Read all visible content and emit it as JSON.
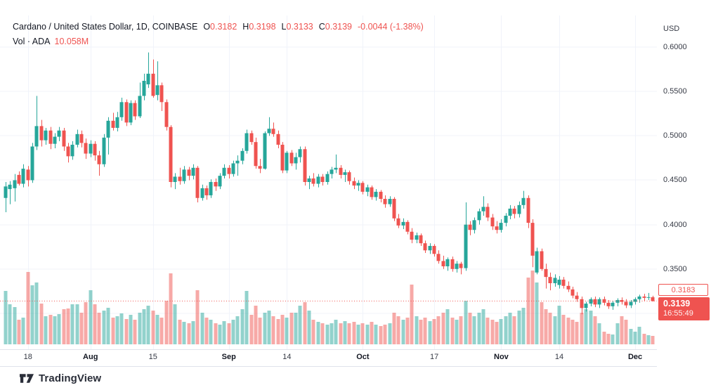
{
  "header": {
    "symbol_title": "Cardano / United States Dollar, 1D, COINBASE",
    "ohlc": [
      {
        "label": "O",
        "value": "0.3182"
      },
      {
        "label": "H",
        "value": "0.3198"
      },
      {
        "label": "L",
        "value": "0.3133"
      },
      {
        "label": "C",
        "value": "0.3139"
      }
    ],
    "change": "-0.0044 (-1.38%)",
    "volume_label": "Vol · ADA",
    "volume_value": "10.058M"
  },
  "price_axis": {
    "currency": "USD",
    "ticks": [
      {
        "label": "0.6000",
        "value": 0.6
      },
      {
        "label": "0.5500",
        "value": 0.55
      },
      {
        "label": "0.5000",
        "value": 0.5
      },
      {
        "label": "0.4500",
        "value": 0.45
      },
      {
        "label": "0.4000",
        "value": 0.4
      },
      {
        "label": "0.3500",
        "value": 0.35
      }
    ],
    "prev_close": {
      "value": "0.3183"
    },
    "last_price": {
      "value": "0.3139",
      "countdown": "16:55:49"
    }
  },
  "time_axis": {
    "ticks": [
      {
        "label": "18",
        "index": 5,
        "major": false
      },
      {
        "label": "Aug",
        "index": 19,
        "major": true
      },
      {
        "label": "15",
        "index": 33,
        "major": false
      },
      {
        "label": "Sep",
        "index": 50,
        "major": true
      },
      {
        "label": "14",
        "index": 63,
        "major": false
      },
      {
        "label": "Oct",
        "index": 80,
        "major": true
      },
      {
        "label": "17",
        "index": 96,
        "major": false
      },
      {
        "label": "Nov",
        "index": 111,
        "major": true
      },
      {
        "label": "14",
        "index": 124,
        "major": false
      },
      {
        "label": "Dec",
        "index": 141,
        "major": true
      }
    ]
  },
  "footer": {
    "brand": "TradingView"
  },
  "colors": {
    "up": "#26a69a",
    "down": "#ef5350",
    "vol_up": "rgba(38,166,154,0.5)",
    "vol_down": "rgba(239,83,80,0.5)",
    "grid": "#f0f3fa",
    "border": "#e0e3eb",
    "text": "#131722",
    "muted": "#363a45",
    "price_line": "#ef5350"
  },
  "chart_data": {
    "type": "candlestick",
    "title": "Cardano / United States Dollar, 1D, COINBASE",
    "ylabel": "USD",
    "ylim": [
      0.265,
      0.608
    ],
    "grid_prices": [
      0.6,
      0.55,
      0.5,
      0.45,
      0.4,
      0.35,
      0.3
    ],
    "price_line": 0.3139,
    "prev_close": 0.3183,
    "last_ohlc": {
      "o": 0.3182,
      "h": 0.3198,
      "l": 0.3133,
      "c": 0.3139
    },
    "volume_note": "volume bar heights are relative units (pane max = 105)",
    "candles": [
      [
        0.43,
        0.448,
        0.414,
        0.443,
        76
      ],
      [
        0.44,
        0.449,
        0.423,
        0.445,
        57
      ],
      [
        0.441,
        0.457,
        0.426,
        0.45,
        53
      ],
      [
        0.456,
        0.46,
        0.444,
        0.446,
        35
      ],
      [
        0.446,
        0.468,
        0.442,
        0.463,
        38
      ],
      [
        0.462,
        0.466,
        0.443,
        0.45,
        103
      ],
      [
        0.45,
        0.492,
        0.447,
        0.488,
        84
      ],
      [
        0.488,
        0.545,
        0.484,
        0.511,
        88
      ],
      [
        0.511,
        0.518,
        0.488,
        0.495,
        58
      ],
      [
        0.495,
        0.509,
        0.49,
        0.506,
        40
      ],
      [
        0.506,
        0.51,
        0.485,
        0.491,
        42
      ],
      [
        0.491,
        0.503,
        0.486,
        0.499,
        40
      ],
      [
        0.499,
        0.51,
        0.494,
        0.506,
        43
      ],
      [
        0.506,
        0.509,
        0.483,
        0.488,
        50
      ],
      [
        0.488,
        0.492,
        0.47,
        0.477,
        51
      ],
      [
        0.477,
        0.494,
        0.473,
        0.49,
        57
      ],
      [
        0.49,
        0.507,
        0.487,
        0.502,
        57
      ],
      [
        0.502,
        0.506,
        0.487,
        0.492,
        45
      ],
      [
        0.492,
        0.497,
        0.474,
        0.48,
        60
      ],
      [
        0.48,
        0.495,
        0.476,
        0.491,
        77
      ],
      [
        0.491,
        0.494,
        0.472,
        0.478,
        57
      ],
      [
        0.478,
        0.483,
        0.455,
        0.468,
        45
      ],
      [
        0.468,
        0.502,
        0.465,
        0.498,
        48
      ],
      [
        0.498,
        0.521,
        0.479,
        0.517,
        52
      ],
      [
        0.517,
        0.526,
        0.506,
        0.509,
        38
      ],
      [
        0.509,
        0.527,
        0.505,
        0.521,
        40
      ],
      [
        0.521,
        0.543,
        0.517,
        0.538,
        44
      ],
      [
        0.538,
        0.541,
        0.511,
        0.515,
        36
      ],
      [
        0.515,
        0.54,
        0.512,
        0.537,
        42
      ],
      [
        0.537,
        0.54,
        0.518,
        0.522,
        35
      ],
      [
        0.522,
        0.56,
        0.52,
        0.545,
        45
      ],
      [
        0.545,
        0.57,
        0.54,
        0.562,
        50
      ],
      [
        0.558,
        0.594,
        0.554,
        0.57,
        55
      ],
      [
        0.57,
        0.586,
        0.543,
        0.545,
        48
      ],
      [
        0.546,
        0.584,
        0.54,
        0.557,
        42
      ],
      [
        0.557,
        0.56,
        0.528,
        0.538,
        38
      ],
      [
        0.538,
        0.541,
        0.506,
        0.51,
        62
      ],
      [
        0.51,
        0.512,
        0.442,
        0.448,
        101
      ],
      [
        0.448,
        0.458,
        0.44,
        0.454,
        57
      ],
      [
        0.454,
        0.464,
        0.445,
        0.449,
        35
      ],
      [
        0.449,
        0.466,
        0.446,
        0.462,
        32
      ],
      [
        0.462,
        0.465,
        0.45,
        0.455,
        30
      ],
      [
        0.455,
        0.468,
        0.451,
        0.464,
        33
      ],
      [
        0.464,
        0.466,
        0.425,
        0.43,
        77
      ],
      [
        0.43,
        0.445,
        0.427,
        0.441,
        45
      ],
      [
        0.441,
        0.444,
        0.428,
        0.433,
        38
      ],
      [
        0.433,
        0.451,
        0.43,
        0.448,
        35
      ],
      [
        0.448,
        0.452,
        0.438,
        0.443,
        30
      ],
      [
        0.443,
        0.458,
        0.44,
        0.455,
        28
      ],
      [
        0.455,
        0.468,
        0.452,
        0.464,
        33
      ],
      [
        0.464,
        0.467,
        0.452,
        0.457,
        30
      ],
      [
        0.457,
        0.472,
        0.454,
        0.469,
        35
      ],
      [
        0.469,
        0.478,
        0.455,
        0.472,
        40
      ],
      [
        0.472,
        0.486,
        0.468,
        0.483,
        50
      ],
      [
        0.483,
        0.507,
        0.48,
        0.503,
        76
      ],
      [
        0.503,
        0.506,
        0.49,
        0.493,
        42
      ],
      [
        0.493,
        0.498,
        0.463,
        0.466,
        55
      ],
      [
        0.466,
        0.474,
        0.458,
        0.463,
        38
      ],
      [
        0.463,
        0.505,
        0.462,
        0.503,
        45
      ],
      [
        0.503,
        0.521,
        0.5,
        0.508,
        48
      ],
      [
        0.508,
        0.515,
        0.499,
        0.502,
        40
      ],
      [
        0.502,
        0.506,
        0.486,
        0.49,
        36
      ],
      [
        0.49,
        0.493,
        0.458,
        0.461,
        42
      ],
      [
        0.461,
        0.483,
        0.458,
        0.481,
        38
      ],
      [
        0.481,
        0.484,
        0.466,
        0.469,
        45
      ],
      [
        0.469,
        0.481,
        0.462,
        0.476,
        45
      ],
      [
        0.476,
        0.488,
        0.47,
        0.485,
        55
      ],
      [
        0.485,
        0.488,
        0.444,
        0.448,
        60
      ],
      [
        0.448,
        0.455,
        0.44,
        0.452,
        48
      ],
      [
        0.452,
        0.458,
        0.443,
        0.446,
        35
      ],
      [
        0.446,
        0.457,
        0.442,
        0.454,
        32
      ],
      [
        0.454,
        0.457,
        0.444,
        0.448,
        30
      ],
      [
        0.448,
        0.46,
        0.445,
        0.457,
        28
      ],
      [
        0.457,
        0.465,
        0.452,
        0.462,
        30
      ],
      [
        0.462,
        0.479,
        0.458,
        0.464,
        35
      ],
      [
        0.464,
        0.467,
        0.452,
        0.456,
        30
      ],
      [
        0.456,
        0.462,
        0.448,
        0.459,
        33
      ],
      [
        0.459,
        0.461,
        0.445,
        0.449,
        30
      ],
      [
        0.449,
        0.453,
        0.44,
        0.444,
        32
      ],
      [
        0.444,
        0.45,
        0.438,
        0.447,
        28
      ],
      [
        0.447,
        0.449,
        0.434,
        0.437,
        30
      ],
      [
        0.437,
        0.445,
        0.432,
        0.442,
        28
      ],
      [
        0.442,
        0.444,
        0.428,
        0.431,
        32
      ],
      [
        0.431,
        0.44,
        0.427,
        0.437,
        28
      ],
      [
        0.437,
        0.439,
        0.425,
        0.429,
        26
      ],
      [
        0.429,
        0.433,
        0.419,
        0.423,
        28
      ],
      [
        0.423,
        0.432,
        0.42,
        0.429,
        30
      ],
      [
        0.429,
        0.431,
        0.404,
        0.407,
        45
      ],
      [
        0.407,
        0.412,
        0.396,
        0.399,
        40
      ],
      [
        0.399,
        0.407,
        0.395,
        0.403,
        35
      ],
      [
        0.403,
        0.405,
        0.389,
        0.392,
        38
      ],
      [
        0.392,
        0.396,
        0.379,
        0.383,
        85
      ],
      [
        0.383,
        0.391,
        0.379,
        0.388,
        40
      ],
      [
        0.388,
        0.39,
        0.376,
        0.379,
        35
      ],
      [
        0.379,
        0.382,
        0.368,
        0.371,
        38
      ],
      [
        0.371,
        0.379,
        0.367,
        0.376,
        33
      ],
      [
        0.376,
        0.378,
        0.364,
        0.367,
        36
      ],
      [
        0.367,
        0.371,
        0.356,
        0.359,
        40
      ],
      [
        0.359,
        0.365,
        0.35,
        0.353,
        45
      ],
      [
        0.353,
        0.363,
        0.348,
        0.361,
        50
      ],
      [
        0.361,
        0.364,
        0.347,
        0.35,
        38
      ],
      [
        0.35,
        0.359,
        0.346,
        0.356,
        35
      ],
      [
        0.356,
        0.358,
        0.344,
        0.351,
        40
      ],
      [
        0.351,
        0.425,
        0.348,
        0.4,
        62
      ],
      [
        0.4,
        0.404,
        0.388,
        0.394,
        45
      ],
      [
        0.394,
        0.408,
        0.39,
        0.405,
        40
      ],
      [
        0.405,
        0.418,
        0.4,
        0.415,
        45
      ],
      [
        0.415,
        0.432,
        0.41,
        0.42,
        50
      ],
      [
        0.42,
        0.424,
        0.404,
        0.408,
        38
      ],
      [
        0.408,
        0.412,
        0.394,
        0.398,
        35
      ],
      [
        0.398,
        0.404,
        0.39,
        0.394,
        32
      ],
      [
        0.394,
        0.406,
        0.391,
        0.402,
        36
      ],
      [
        0.402,
        0.413,
        0.398,
        0.41,
        40
      ],
      [
        0.41,
        0.422,
        0.406,
        0.418,
        45
      ],
      [
        0.418,
        0.421,
        0.407,
        0.412,
        40
      ],
      [
        0.412,
        0.426,
        0.408,
        0.422,
        48
      ],
      [
        0.422,
        0.438,
        0.418,
        0.43,
        52
      ],
      [
        0.43,
        0.433,
        0.396,
        0.402,
        95
      ],
      [
        0.402,
        0.406,
        0.352,
        0.365,
        105
      ],
      [
        0.346,
        0.374,
        0.344,
        0.37,
        88
      ],
      [
        0.37,
        0.373,
        0.348,
        0.35,
        60
      ],
      [
        0.35,
        0.356,
        0.328,
        0.341,
        50
      ],
      [
        0.341,
        0.346,
        0.326,
        0.334,
        45
      ],
      [
        0.334,
        0.344,
        0.33,
        0.34,
        40
      ],
      [
        0.332,
        0.342,
        0.328,
        0.338,
        55
      ],
      [
        0.338,
        0.341,
        0.328,
        0.331,
        42
      ],
      [
        0.331,
        0.336,
        0.324,
        0.327,
        38
      ],
      [
        0.327,
        0.33,
        0.317,
        0.32,
        35
      ],
      [
        0.32,
        0.324,
        0.313,
        0.316,
        32
      ],
      [
        0.316,
        0.319,
        0.299,
        0.306,
        45
      ],
      [
        0.306,
        0.313,
        0.302,
        0.311,
        50
      ],
      [
        0.311,
        0.318,
        0.308,
        0.316,
        48
      ],
      [
        0.316,
        0.319,
        0.307,
        0.31,
        40
      ],
      [
        0.31,
        0.318,
        0.306,
        0.316,
        30
      ],
      [
        0.316,
        0.319,
        0.309,
        0.312,
        18
      ],
      [
        0.312,
        0.315,
        0.305,
        0.308,
        15
      ],
      [
        0.308,
        0.314,
        0.304,
        0.312,
        14
      ],
      [
        0.312,
        0.317,
        0.308,
        0.315,
        30
      ],
      [
        0.315,
        0.318,
        0.31,
        0.313,
        40
      ],
      [
        0.313,
        0.316,
        0.306,
        0.309,
        35
      ],
      [
        0.309,
        0.315,
        0.306,
        0.313,
        22
      ],
      [
        0.313,
        0.318,
        0.31,
        0.316,
        18
      ],
      [
        0.316,
        0.321,
        0.312,
        0.319,
        25
      ],
      [
        0.319,
        0.322,
        0.314,
        0.3175,
        15
      ],
      [
        0.3175,
        0.323,
        0.315,
        0.3183,
        13
      ],
      [
        0.3182,
        0.3198,
        0.3133,
        0.3139,
        12
      ]
    ]
  }
}
